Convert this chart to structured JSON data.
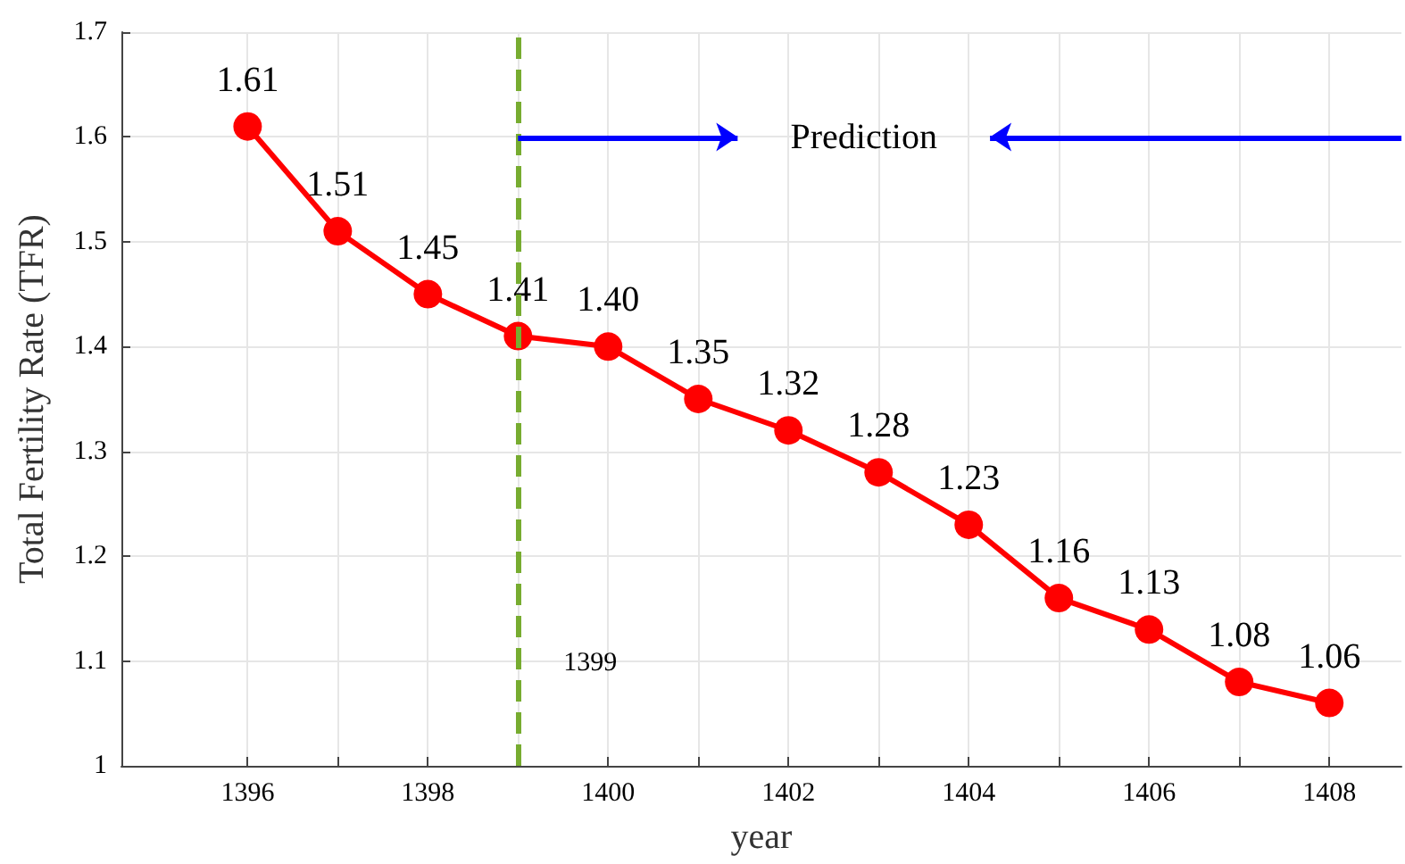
{
  "chart_data": {
    "type": "line",
    "xlabel": "year",
    "ylabel": "Total Fertility Rate (TFR)",
    "x": [
      1396,
      1397,
      1398,
      1399,
      1400,
      1401,
      1402,
      1403,
      1404,
      1405,
      1406,
      1407,
      1408
    ],
    "series": [
      {
        "color": "#ff0000",
        "values": [
          1.61,
          1.51,
          1.45,
          1.41,
          1.4,
          1.35,
          1.32,
          1.28,
          1.23,
          1.16,
          1.13,
          1.08,
          1.06
        ],
        "value_labels": [
          "1.61",
          "1.51",
          "1.45",
          "1.41",
          "1.40",
          "1.35",
          "1.32",
          "1.28",
          "1.23",
          "1.16",
          "1.13",
          "1.08",
          "1.06"
        ]
      }
    ],
    "marker": "circle",
    "line_style": "solid",
    "xlim": [
      1394.6,
      1408.8
    ],
    "xticks": [
      1396,
      {
        "value": 1397,
        "label": null
      },
      1398,
      {
        "value": 1399,
        "label": null
      },
      1400,
      {
        "value": 1401,
        "label": null
      },
      1402,
      {
        "value": 1403,
        "label": null
      },
      1404,
      {
        "value": 1405,
        "label": null
      },
      1406,
      {
        "value": 1407,
        "label": null
      },
      1408
    ],
    "ylim": [
      1,
      1.7
    ],
    "yticks": [
      1,
      1.1,
      1.2,
      1.3,
      1.4,
      1.5,
      1.6,
      1.7
    ],
    "ref_lines": [
      {
        "axis": "x",
        "value": 1399,
        "label": "1399",
        "color": "#77ac30",
        "line_style": "dashed"
      }
    ],
    "annotations": [
      "Prediction"
    ],
    "grid": true
  }
}
